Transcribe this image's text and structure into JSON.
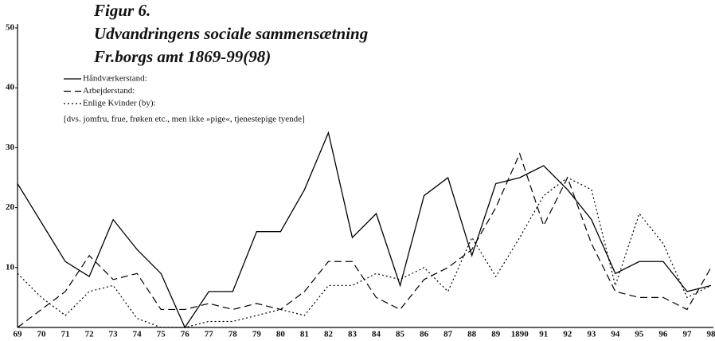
{
  "chart_data": {
    "type": "line",
    "title": [
      "Figur 6.",
      "Udvandringens sociale sammensætning",
      "Fr.borgs amt 1869-99(98)"
    ],
    "annotations": [
      "[dvs. jomfru, frue, frøken etc., men ikke »pige«, tjenestepige tyende]"
    ],
    "categories": [
      "69",
      "70",
      "71",
      "72",
      "73",
      "74",
      "75",
      "76",
      "77",
      "78",
      "79",
      "80",
      "81",
      "82",
      "83",
      "84",
      "85",
      "86",
      "87",
      "88",
      "89",
      "1890",
      "91",
      "92",
      "93",
      "94",
      "95",
      "96",
      "97",
      "98"
    ],
    "series": [
      {
        "name": "Håndværkerstand:",
        "color": "#000",
        "linestyle": "solid",
        "values": [
          24,
          17.5,
          11,
          8.5,
          18,
          13,
          9,
          0,
          6,
          6,
          16,
          16,
          23,
          32.5,
          15,
          19,
          7,
          22,
          25,
          12,
          24,
          25,
          27,
          23,
          18,
          9,
          11,
          11,
          6,
          7
        ]
      },
      {
        "name": "Arbejderstand:",
        "color": "#000",
        "linestyle": "dashed",
        "values": [
          0,
          3,
          6,
          12,
          8,
          9,
          3,
          3,
          4,
          3,
          4,
          3,
          6,
          11,
          11,
          5,
          3,
          8,
          10,
          13,
          20,
          29,
          17,
          25,
          14,
          6,
          5,
          5,
          3,
          10
        ]
      },
      {
        "name": "Enlige Kvinder (by):",
        "color": "#000",
        "linestyle": "dotted",
        "values": [
          9,
          5,
          2,
          6,
          7,
          1.5,
          0,
          0,
          1,
          1,
          2,
          3,
          2,
          7,
          7,
          9,
          8,
          10,
          6,
          15,
          8.5,
          15,
          22,
          25,
          23,
          7,
          19,
          14,
          5,
          7
        ]
      }
    ],
    "ylim": [
      0,
      50
    ],
    "yticks": [
      10,
      20,
      30,
      40,
      50
    ]
  }
}
